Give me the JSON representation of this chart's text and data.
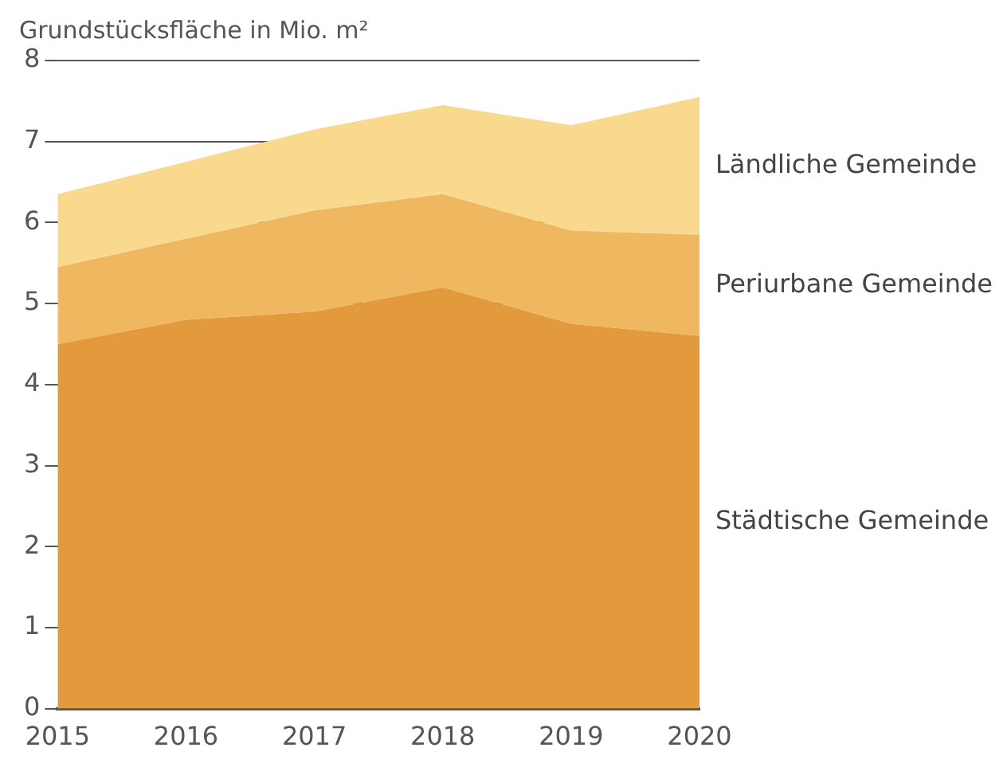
{
  "chart_data": {
    "type": "area",
    "ylabel": "Grundstücksfläche in Mio. m²",
    "categories": [
      "2015",
      "2016",
      "2017",
      "2018",
      "2019",
      "2020"
    ],
    "stacked": true,
    "series": [
      {
        "name": "Städtische Gemeinde",
        "color": "#e39a3c",
        "values": [
          4.5,
          4.8,
          4.9,
          5.2,
          4.75,
          4.6
        ]
      },
      {
        "name": "Periurbane Gemeinde",
        "color": "#efb860",
        "values": [
          0.95,
          1.0,
          1.25,
          1.15,
          1.15,
          1.25
        ]
      },
      {
        "name": "Ländliche Gemeinde",
        "color": "#f8d98e",
        "values": [
          0.9,
          0.95,
          1.0,
          1.1,
          1.3,
          1.7
        ]
      }
    ],
    "ylim": [
      0,
      8
    ],
    "yticks": [
      0,
      1,
      2,
      3,
      4,
      5,
      6,
      7,
      8
    ],
    "grid": "y",
    "legend": false
  }
}
